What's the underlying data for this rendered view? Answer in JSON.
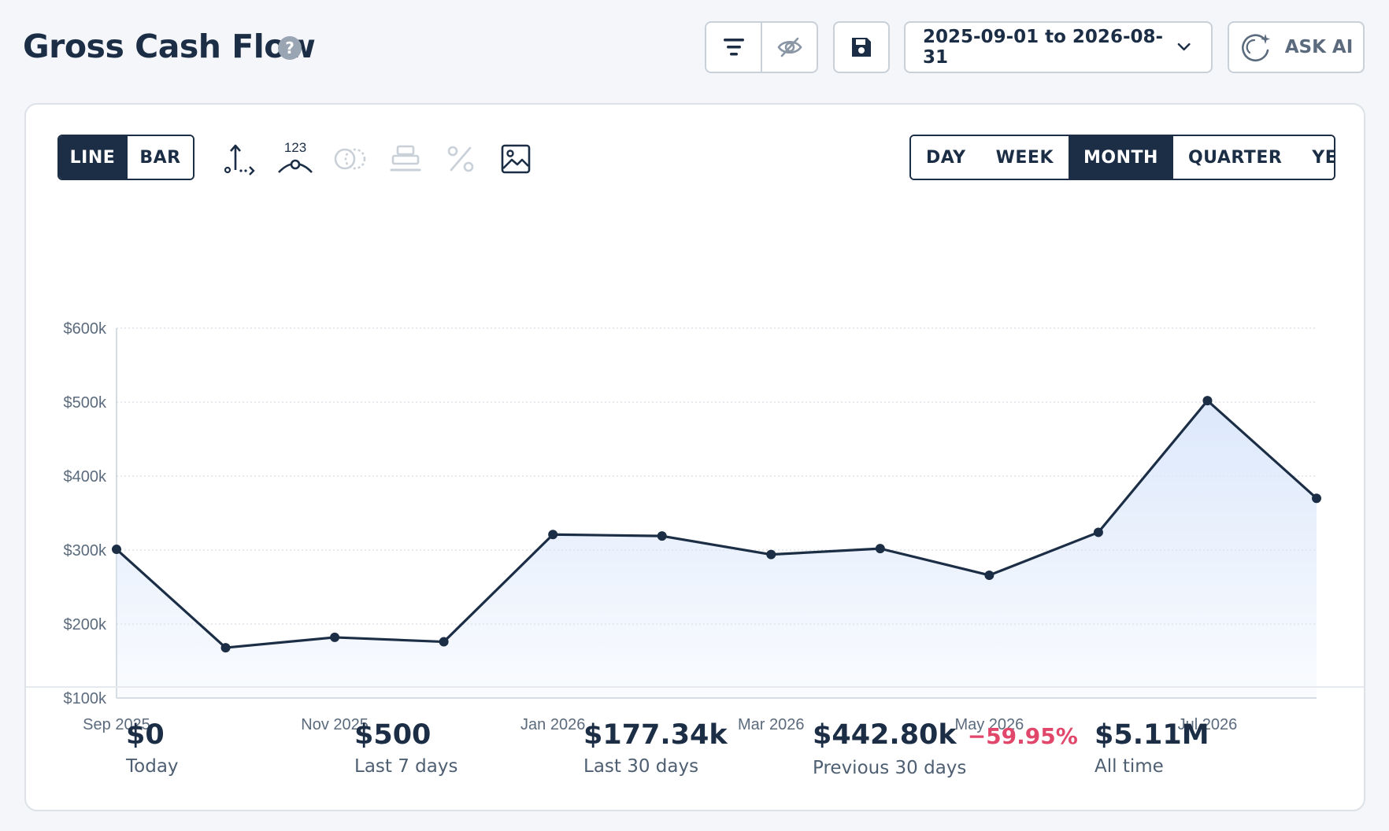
{
  "header": {
    "title": "Gross Cash Flow",
    "help_glyph": "?",
    "date_range": "2025-09-01 to 2026-08-31",
    "ask_ai_label": "ASK AI"
  },
  "toolbar": {
    "chart_types": [
      {
        "label": "LINE",
        "active": true
      },
      {
        "label": "BAR",
        "active": false
      }
    ],
    "values_icon_label": "123",
    "periods": [
      {
        "label": "DAY",
        "active": false
      },
      {
        "label": "WEEK",
        "active": false
      },
      {
        "label": "MONTH",
        "active": true
      },
      {
        "label": "QUARTER",
        "active": false
      },
      {
        "label": "YEAR",
        "active": false
      }
    ]
  },
  "colors": {
    "primary": "#1c2e45",
    "accent_fill": "#dce8fb",
    "negative": "#e0476a",
    "grid": "#d6dce4"
  },
  "chart_data": {
    "type": "line",
    "title": "",
    "xlabel": "",
    "ylabel": "",
    "x": [
      "2025-09",
      "2025-10",
      "2025-11",
      "2025-12",
      "2026-01",
      "2026-02",
      "2026-03",
      "2026-04",
      "2026-05",
      "2026-06",
      "2026-07",
      "2026-08"
    ],
    "x_tick_labels": [
      {
        "x": "2025-09",
        "label": "Sep 2025"
      },
      {
        "x": "2025-11",
        "label": "Nov 2025"
      },
      {
        "x": "2026-01",
        "label": "Jan 2026"
      },
      {
        "x": "2026-03",
        "label": "Mar 2026"
      },
      {
        "x": "2026-05",
        "label": "May 2026"
      },
      {
        "x": "2026-07",
        "label": "Jul 2026"
      }
    ],
    "y_ticks": [
      100000,
      200000,
      300000,
      400000,
      500000,
      600000
    ],
    "y_tick_labels": [
      "$100k",
      "$200k",
      "$300k",
      "$400k",
      "$500k",
      "$600k"
    ],
    "ylim": [
      100000,
      600000
    ],
    "series": [
      {
        "values": [
          301000,
          168000,
          182000,
          176000,
          321000,
          319000,
          294000,
          302000,
          266000,
          324000,
          502000,
          370000
        ]
      }
    ],
    "area_fill": true,
    "grid": true,
    "legend": "none"
  },
  "stats": [
    {
      "value": "$0",
      "label": "Today"
    },
    {
      "value": "$500",
      "label": "Last 7 days"
    },
    {
      "value": "$177.34k",
      "label": "Last 30 days"
    },
    {
      "value": "$442.80k",
      "label": "Previous 30 days",
      "delta": "−59.95%"
    },
    {
      "value": "$5.11M",
      "label": "All time"
    }
  ]
}
